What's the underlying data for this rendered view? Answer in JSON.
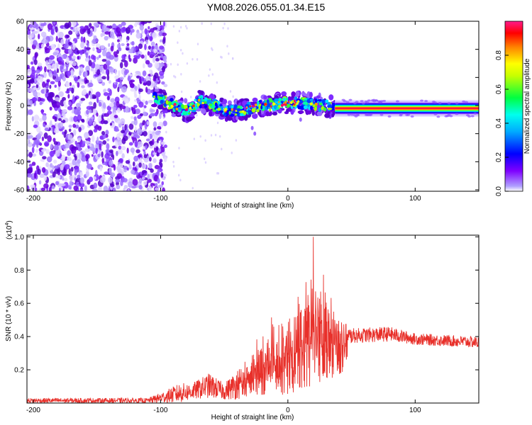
{
  "figure": {
    "title": "YM08.2026.055.01.34.E15"
  },
  "chart_data": [
    {
      "type": "heatmap",
      "panel": "top",
      "xlabel": "Height of straight line (km)",
      "ylabel": "Frequency (Hz)",
      "xlim": [
        -205,
        150
      ],
      "ylim": [
        -61,
        60
      ],
      "xticks": [
        -200,
        -100,
        0,
        100
      ],
      "xtick_labels": [
        "-200",
        "-100",
        "0",
        "100"
      ],
      "yticks": [
        -60,
        -40,
        -20,
        0,
        20,
        40,
        60
      ],
      "ytick_labels": [
        "-60",
        "-40",
        "-20",
        "0",
        "20",
        "40",
        "60"
      ],
      "colorbar": {
        "label": "Normalized spectral amplitude",
        "range": [
          0,
          1
        ],
        "ticks": [
          0.0,
          0.2,
          0.4,
          0.6,
          0.8
        ],
        "tick_labels": [
          "0.0",
          "0.2",
          "0.4",
          "0.6",
          "0.8"
        ],
        "colors": [
          "#ffffff",
          "#7f00ff",
          "#0000ff",
          "#00ffff",
          "#00ff00",
          "#ffff00",
          "#ff8000",
          "#ff0000",
          "#ff1493"
        ]
      },
      "features": {
        "noise_region_km": [
          -205,
          -100
        ],
        "ridge_region_km": [
          -105,
          37
        ],
        "steady_band_km": [
          37,
          150
        ],
        "steady_band_center_hz": -2,
        "ridge_center_hz": [
          {
            "x": -105,
            "y": 6
          },
          {
            "x": -95,
            "y": 2
          },
          {
            "x": -85,
            "y": -2
          },
          {
            "x": -78,
            "y": -4
          },
          {
            "x": -70,
            "y": 3
          },
          {
            "x": -60,
            "y": 1
          },
          {
            "x": -50,
            "y": -3
          },
          {
            "x": -40,
            "y": -4
          },
          {
            "x": -30,
            "y": -2
          },
          {
            "x": -20,
            "y": 0
          },
          {
            "x": -10,
            "y": 1
          },
          {
            "x": 0,
            "y": 2
          },
          {
            "x": 10,
            "y": 2
          },
          {
            "x": 20,
            "y": 1
          },
          {
            "x": 30,
            "y": 0
          },
          {
            "x": 37,
            "y": -2
          }
        ]
      }
    },
    {
      "type": "line",
      "panel": "bottom",
      "xlabel": "Height of straight line (km)",
      "ylabel": "SNR (10 * v/v)",
      "yscale_label": "(x10",
      "yscale_exponent": "4",
      "yscale_close": ")",
      "xlim": [
        -205,
        150
      ],
      "ylim": [
        0,
        1.01
      ],
      "xticks": [
        -200,
        -100,
        0,
        100
      ],
      "xtick_labels": [
        "-200",
        "-100",
        "0",
        "100"
      ],
      "yticks": [
        0.2,
        0.4,
        0.6,
        0.8,
        1.0
      ],
      "ytick_labels": [
        "0.2",
        "0.4",
        "0.6",
        "0.8",
        "1.0"
      ],
      "color": "#e8302a",
      "series": [
        {
          "name": "SNR",
          "envelope": [
            {
              "x": -205,
              "lo": 0.0,
              "hi": 0.03
            },
            {
              "x": -110,
              "lo": 0.0,
              "hi": 0.03
            },
            {
              "x": -95,
              "lo": 0.0,
              "hi": 0.08
            },
            {
              "x": -85,
              "lo": 0.0,
              "hi": 0.12
            },
            {
              "x": -75,
              "lo": 0.02,
              "hi": 0.12
            },
            {
              "x": -62,
              "lo": 0.03,
              "hi": 0.18
            },
            {
              "x": -50,
              "lo": 0.02,
              "hi": 0.12
            },
            {
              "x": -40,
              "lo": 0.02,
              "hi": 0.2
            },
            {
              "x": -28,
              "lo": 0.05,
              "hi": 0.35
            },
            {
              "x": -15,
              "lo": 0.05,
              "hi": 0.52
            },
            {
              "x": 0,
              "lo": 0.05,
              "hi": 0.55
            },
            {
              "x": 10,
              "lo": 0.08,
              "hi": 0.7
            },
            {
              "x": 20,
              "lo": 0.1,
              "hi": 0.95
            },
            {
              "x": 30,
              "lo": 0.15,
              "hi": 0.78
            },
            {
              "x": 38,
              "lo": 0.15,
              "hi": 0.62
            },
            {
              "x": 45,
              "lo": 0.2,
              "hi": 0.5
            },
            {
              "x": 50,
              "lo": 0.36,
              "hi": 0.45
            },
            {
              "x": 80,
              "lo": 0.37,
              "hi": 0.46
            },
            {
              "x": 100,
              "lo": 0.35,
              "hi": 0.42
            },
            {
              "x": 150,
              "lo": 0.33,
              "hi": 0.4
            }
          ],
          "peak": {
            "x": 20,
            "y": 1.0
          }
        }
      ]
    }
  ]
}
